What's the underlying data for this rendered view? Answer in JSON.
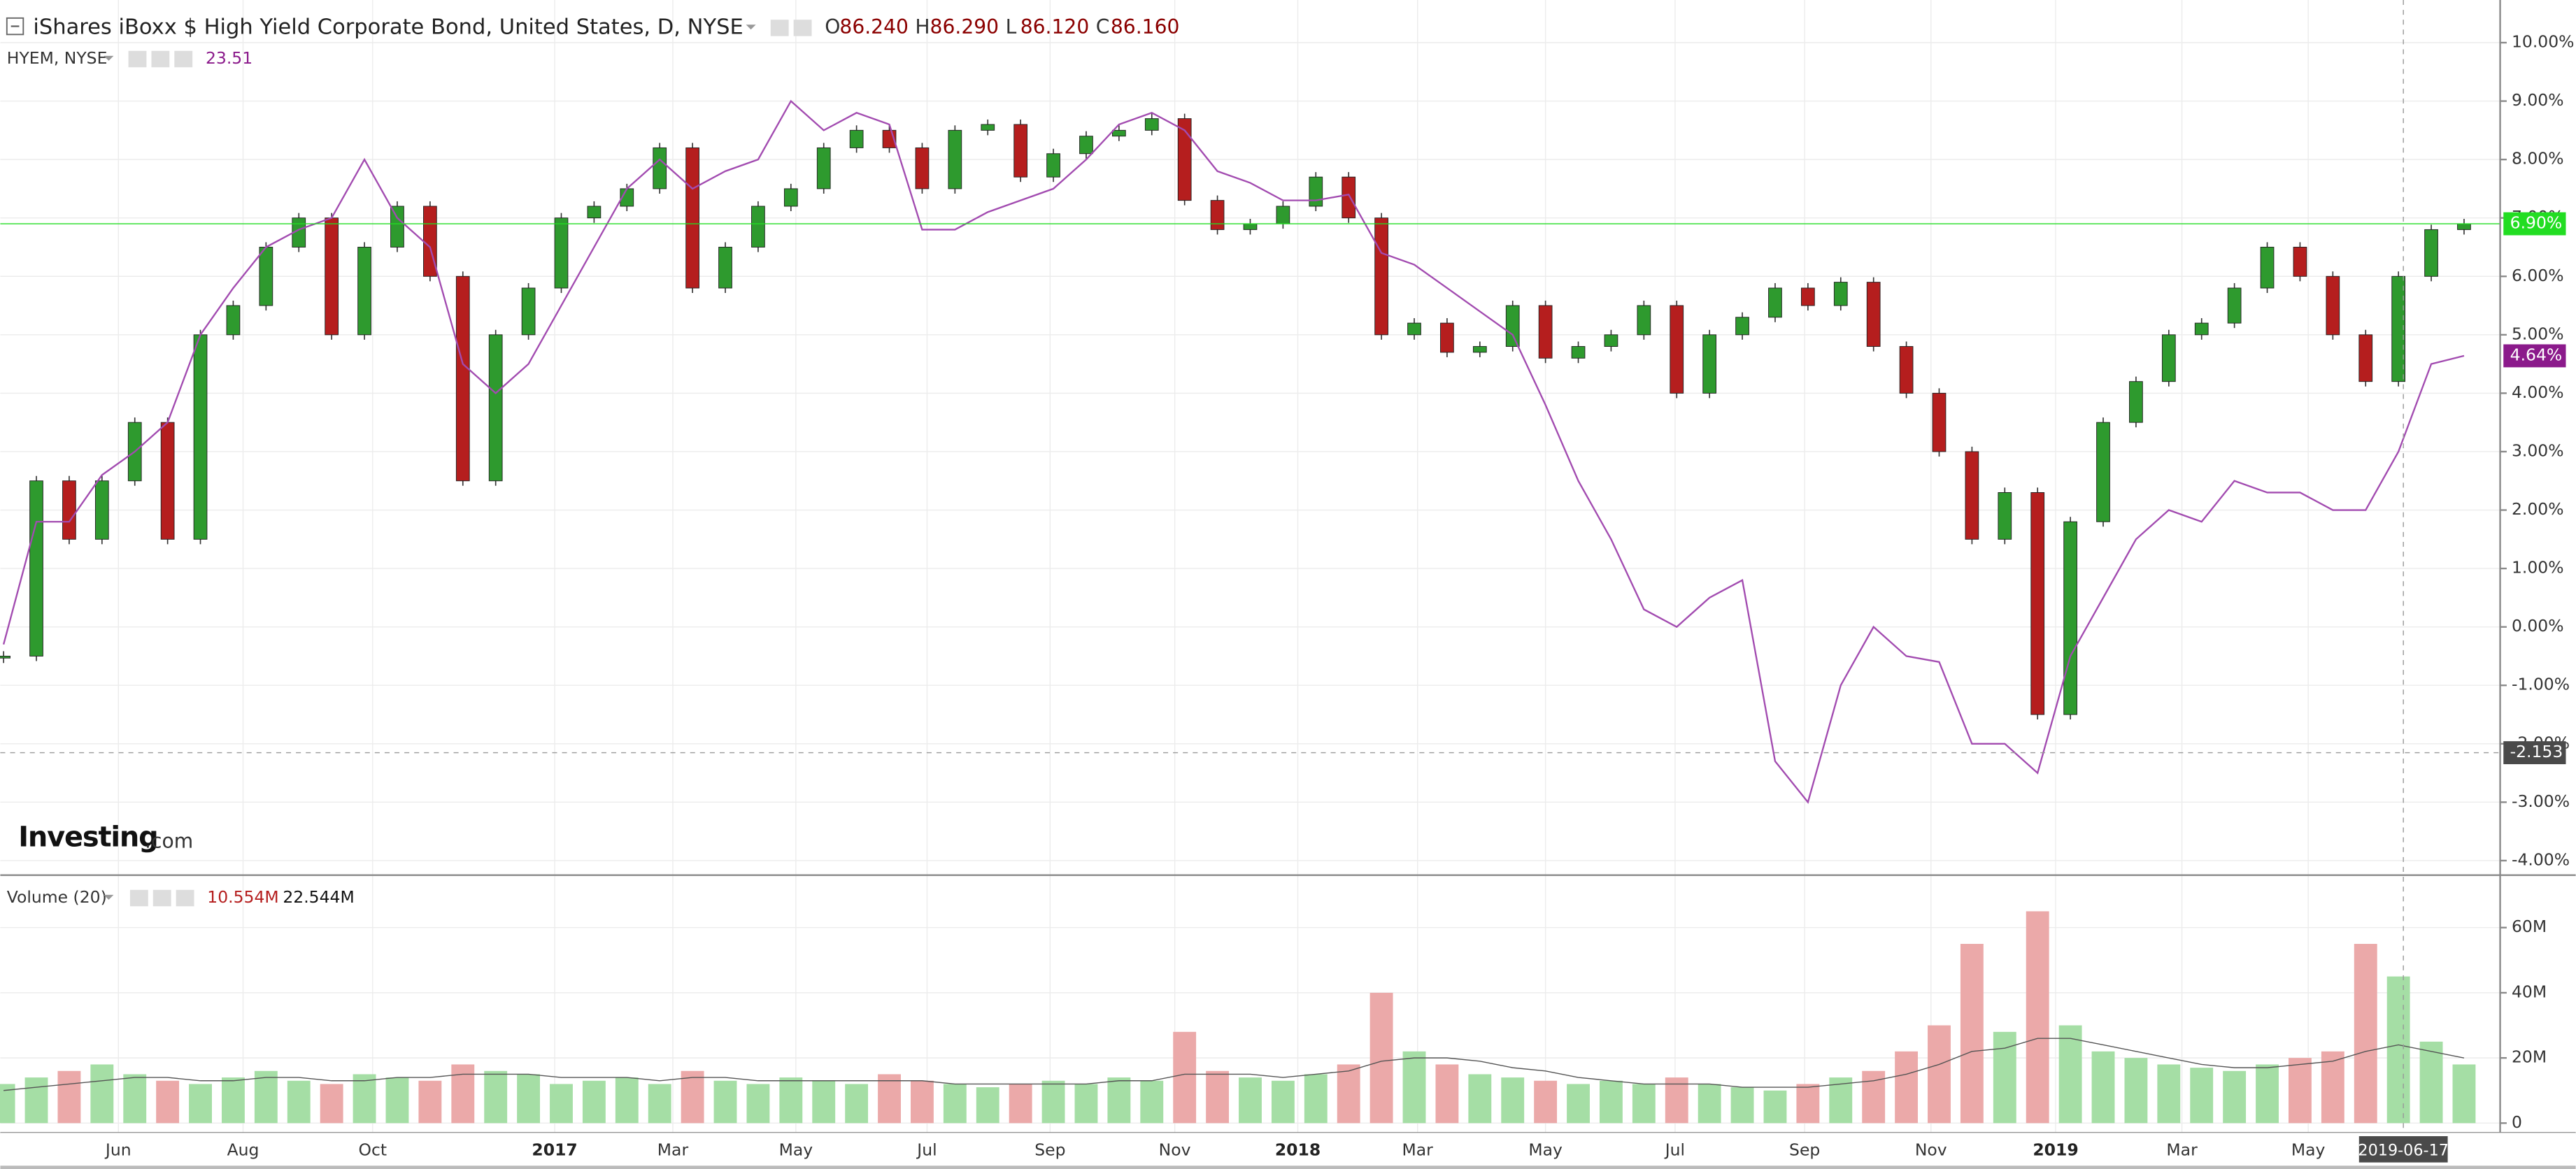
{
  "header": {
    "ohlc": [
      {
        "key": "O",
        "value": "86.240"
      },
      {
        "key": "H",
        "value": "86.290"
      },
      {
        "key": "L",
        "value": "86.120"
      },
      {
        "key": "C",
        "value": "86.160"
      }
    ],
    "hyem_last": "23.51",
    "logo": {
      "brand": "Investing",
      "suffix": ".com"
    }
  },
  "chart_data": [
    {
      "type": "candlestick",
      "xlim": [
        -0.1,
        76.1
      ],
      "ylim": [
        -4.22,
        10.73
      ],
      "grid": true,
      "yticks": [
        {
          "value": 10,
          "label": "10.00%"
        },
        {
          "value": 9,
          "label": "9.00%"
        },
        {
          "value": 8,
          "label": "8.00%"
        },
        {
          "value": 7,
          "label": "7.00%"
        },
        {
          "value": 6,
          "label": "6.00%"
        },
        {
          "value": 5,
          "label": "5.00%"
        },
        {
          "value": 4,
          "label": "4.00%"
        },
        {
          "value": 3,
          "label": "3.00%"
        },
        {
          "value": 2,
          "label": "2.00%"
        },
        {
          "value": 1,
          "label": "1.00%"
        },
        {
          "value": 0,
          "label": "0.00%"
        },
        {
          "value": -1,
          "label": "-1.00%"
        },
        {
          "value": -2,
          "label": "-2.00%"
        },
        {
          "value": -3,
          "label": "-3.00%"
        },
        {
          "value": -4,
          "label": "-4.00%"
        }
      ],
      "xticks": [
        {
          "value": 3.5,
          "label": "Jun"
        },
        {
          "value": 7.3,
          "label": "Aug"
        },
        {
          "value": 11.25,
          "label": "Oct"
        },
        {
          "value": 16.8,
          "label": "2017"
        },
        {
          "value": 20.4,
          "label": "Mar"
        },
        {
          "value": 24.15,
          "label": "May"
        },
        {
          "value": 28.15,
          "label": "Jul"
        },
        {
          "value": 31.9,
          "label": "Sep"
        },
        {
          "value": 35.7,
          "label": "Nov"
        },
        {
          "value": 39.45,
          "label": "2018"
        },
        {
          "value": 43.1,
          "label": "Mar"
        },
        {
          "value": 47,
          "label": "May"
        },
        {
          "value": 50.95,
          "label": "Jul"
        },
        {
          "value": 54.9,
          "label": "Sep"
        },
        {
          "value": 58.75,
          "label": "Nov"
        },
        {
          "value": 62.55,
          "label": "2019"
        },
        {
          "value": 66.4,
          "label": "Mar"
        },
        {
          "value": 70.25,
          "label": "May"
        }
      ],
      "series": [
        {
          "name": "iShares iBoxx $ High Yield Corporate Bond, United States, D, NYSE",
          "type": "candlestick",
          "up_color": "#2e9a2e",
          "down_color": "#b51e1e",
          "label_color": "#22dd22",
          "last_label": "6.90%",
          "values": [
            -0.5,
            2.5,
            1.5,
            2.5,
            3.5,
            1.5,
            5.0,
            5.5,
            6.5,
            7.0,
            5.0,
            6.5,
            7.2,
            6.0,
            2.5,
            5.0,
            5.8,
            7.0,
            7.2,
            7.5,
            8.2,
            5.8,
            6.5,
            7.2,
            7.5,
            8.2,
            8.5,
            8.2,
            7.5,
            8.5,
            8.6,
            7.7,
            8.1,
            8.4,
            8.5,
            8.7,
            7.3,
            6.8,
            6.9,
            7.2,
            7.7,
            7.0,
            5.0,
            5.2,
            4.7,
            4.8,
            5.5,
            4.6,
            4.8,
            5.0,
            5.5,
            4.0,
            5.0,
            5.3,
            5.8,
            5.5,
            5.9,
            4.8,
            4.0,
            3.0,
            1.5,
            2.3,
            -1.5,
            1.8,
            3.5,
            4.2,
            5.0,
            5.2,
            5.8,
            6.5,
            6.0,
            5.0,
            4.2,
            6.0,
            6.8,
            6.9
          ]
        },
        {
          "name": "HYEM, NYSE",
          "type": "line",
          "color": "#a24bb0",
          "label_color": "#8b1a8b",
          "last_label": "4.64%",
          "values": [
            -0.3,
            1.8,
            1.8,
            2.6,
            3.0,
            3.5,
            5.0,
            5.8,
            6.5,
            6.8,
            7.0,
            8.0,
            7.0,
            6.5,
            4.5,
            4.0,
            4.5,
            5.5,
            6.5,
            7.5,
            8.0,
            7.5,
            7.8,
            8.0,
            9.0,
            8.5,
            8.8,
            8.6,
            6.8,
            6.8,
            7.1,
            7.3,
            7.5,
            8.0,
            8.6,
            8.8,
            8.5,
            7.8,
            7.6,
            7.3,
            7.3,
            7.4,
            6.4,
            6.2,
            5.8,
            5.4,
            5.0,
            3.8,
            2.5,
            1.5,
            0.3,
            0.0,
            0.5,
            0.8,
            -2.3,
            -3.0,
            -1.0,
            0.0,
            -0.5,
            -0.6,
            -2.0,
            -2.0,
            -2.5,
            -0.5,
            0.5,
            1.5,
            2.0,
            1.8,
            2.5,
            2.3,
            2.3,
            2.0,
            2.0,
            3.0,
            4.5,
            4.64
          ]
        }
      ],
      "crosshair": {
        "y": {
          "value": -2.153,
          "label": "-2.153"
        },
        "x": {
          "value": 73.15,
          "label": "2019-06-17"
        }
      }
    },
    {
      "type": "bar",
      "ylim": [
        -3,
        75.6
      ],
      "yticks": [
        0,
        {
          "value": 20,
          "label": "20M"
        },
        {
          "value": 40,
          "label": "40M"
        },
        {
          "value": 60,
          "label": "60M"
        }
      ],
      "readouts": [
        "10.554M",
        "22.544M"
      ],
      "series": [
        {
          "name": "Volume (20)",
          "type": "bar",
          "up_color": "#a5dea5",
          "down_color": "#eba9a9",
          "values": [
            12,
            14,
            16,
            18,
            15,
            13,
            12,
            14,
            16,
            13,
            12,
            15,
            14,
            13,
            18,
            16,
            15,
            12,
            13,
            14,
            12,
            16,
            13,
            12,
            14,
            13,
            12,
            15,
            13,
            12,
            11,
            12,
            13,
            12,
            14,
            13,
            28,
            16,
            14,
            13,
            15,
            18,
            40,
            22,
            18,
            15,
            14,
            13,
            12,
            13,
            12,
            14,
            12,
            11,
            10,
            12,
            14,
            16,
            22,
            30,
            55,
            28,
            65,
            30,
            22,
            20,
            18,
            17,
            16,
            18,
            20,
            22,
            55,
            45,
            25,
            18
          ]
        }
      ],
      "ma": {
        "color": "#555555",
        "values": [
          10,
          11,
          12,
          13,
          14,
          14,
          13,
          13,
          14,
          14,
          13,
          13,
          14,
          14,
          15,
          15,
          15,
          14,
          14,
          14,
          13,
          14,
          14,
          13,
          13,
          13,
          13,
          13,
          13,
          12,
          12,
          12,
          12,
          12,
          13,
          13,
          15,
          15,
          15,
          14,
          15,
          16,
          19,
          20,
          20,
          19,
          17,
          16,
          14,
          13,
          12,
          12,
          12,
          11,
          11,
          11,
          12,
          13,
          15,
          18,
          22,
          23,
          26,
          26,
          24,
          22,
          20,
          18,
          17,
          17,
          18,
          19,
          22,
          24,
          22,
          20
        ]
      }
    }
  ]
}
